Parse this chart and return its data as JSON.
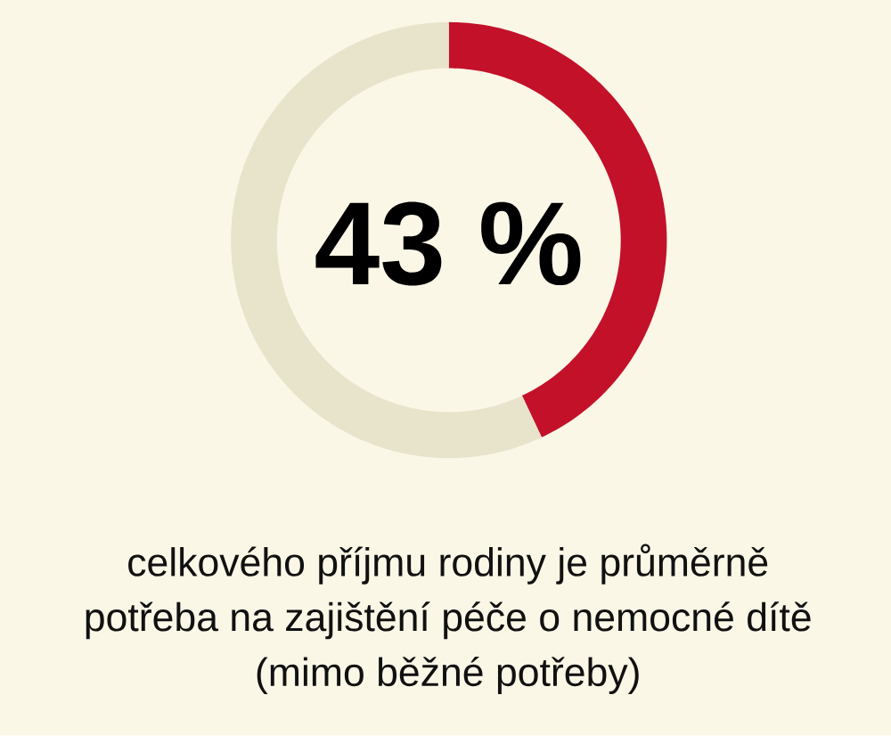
{
  "chart_data": {
    "type": "donut",
    "categories": [
      null,
      null
    ],
    "values": [
      43,
      57
    ],
    "colors": [
      "#c3112a",
      "#e8e3cb"
    ],
    "annotations": [
      "43 %",
      "celkového příjmu rodiny je průměrně",
      "potřeba na zajištění péče o nemocné dítě",
      "(mimo běžné potřeby)"
    ]
  }
}
